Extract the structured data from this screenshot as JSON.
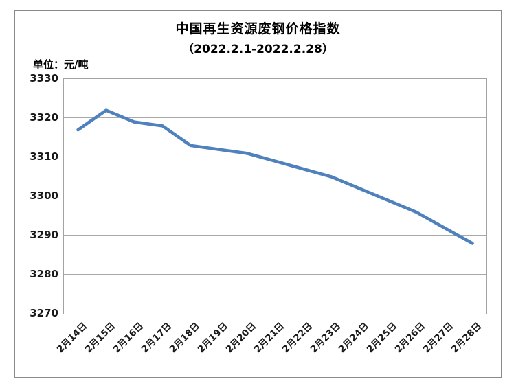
{
  "chart": {
    "title": "中国再生资源废钢价格指数",
    "subtitle": "（2022.2.1-2022.2.28）",
    "unit_label": "单位：元/吨"
  },
  "chart_data": {
    "type": "line",
    "title": "中国再生资源废钢价格指数（2022.2.1-2022.2.28）",
    "ylabel": "元/吨",
    "xlabel": "",
    "categories": [
      "2月14日",
      "2月15日",
      "2月16日",
      "2月17日",
      "2月18日",
      "2月19日",
      "2月20日",
      "2月21日",
      "2月22日",
      "2月23日",
      "2月24日",
      "2月25日",
      "2月26日",
      "2月27日",
      "2月28日"
    ],
    "values": [
      3317,
      3322,
      3319,
      3318,
      3313,
      3312,
      3311,
      3309,
      3307,
      3305,
      3302,
      3299,
      3296,
      3292,
      3288
    ],
    "ylim": [
      3270,
      3330
    ],
    "yticks": [
      3270,
      3280,
      3290,
      3300,
      3310,
      3320,
      3330
    ],
    "grid": true,
    "legend_position": "none",
    "line_color": "#4F81BD",
    "gridline_color": "#a8a8a8",
    "axis_text_color": "#1a1a1a"
  }
}
